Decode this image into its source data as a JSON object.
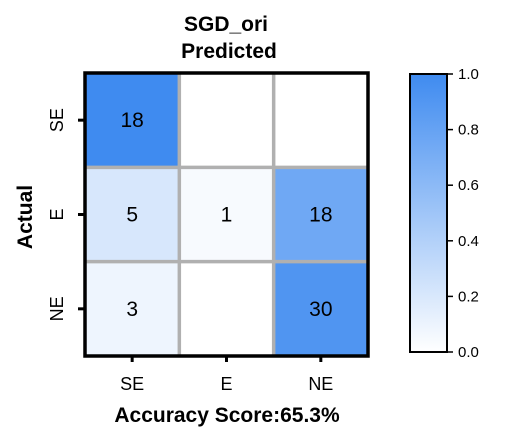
{
  "chart_data": {
    "type": "heatmap",
    "title_line1": "SGD_ori",
    "title_line2": "Predicted",
    "xlabel": "Accuracy Score:65.3%",
    "ylabel": "Actual",
    "x_categories": [
      "SE",
      "E",
      "NE"
    ],
    "y_categories": [
      "SE",
      "E",
      "NE"
    ],
    "matrix": [
      [
        18,
        null,
        null
      ],
      [
        5,
        1,
        18
      ],
      [
        3,
        null,
        30
      ]
    ],
    "normalized": [
      [
        1.0,
        0.0,
        0.0
      ],
      [
        0.21,
        0.04,
        0.75
      ],
      [
        0.09,
        0.0,
        0.91
      ]
    ],
    "colorbar": {
      "ticks": [
        "0.0",
        "0.2",
        "0.4",
        "0.6",
        "0.8",
        "1.0"
      ],
      "range": [
        0,
        1
      ],
      "color_low": "#ffffff",
      "color_high": "#3f8bf0"
    },
    "grid_color": "#b0b0b0",
    "border_color": "#000000"
  }
}
